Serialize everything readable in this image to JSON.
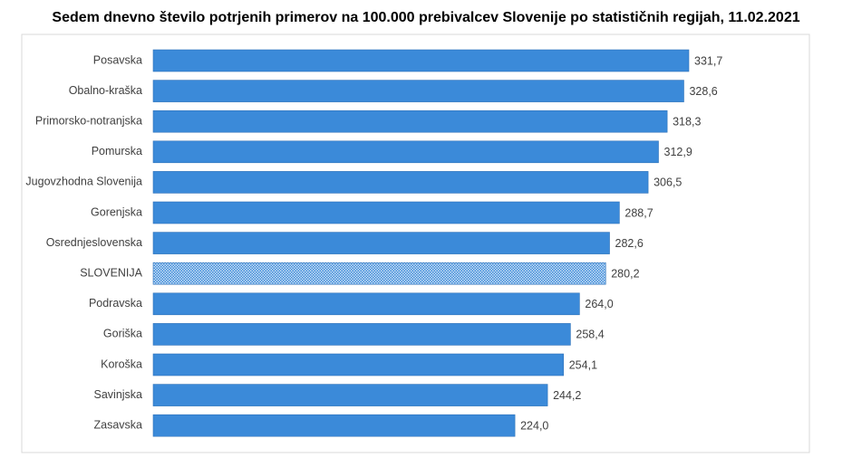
{
  "chart_data": {
    "type": "bar",
    "orientation": "horizontal",
    "title": "Sedem dnevno število potrjenih primerov na 100.000 prebivalcev Slovenije po statističnih regijah, 11.02.2021",
    "categories": [
      "Posavska",
      "Obalno-kraška",
      "Primorsko-notranjska",
      "Pomurska",
      "Jugovzhodna Slovenija",
      "Gorenjska",
      "Osrednjeslovenska",
      "SLOVENIJA",
      "Podravska",
      "Goriška",
      "Koroška",
      "Savinjska",
      "Zasavska"
    ],
    "values": [
      331.7,
      328.6,
      318.3,
      312.9,
      306.5,
      288.7,
      282.6,
      280.2,
      264.0,
      258.4,
      254.1,
      244.2,
      224.0
    ],
    "value_labels": [
      "331,7",
      "328,6",
      "318,3",
      "312,9",
      "306,5",
      "288,7",
      "282,6",
      "280,2",
      "264,0",
      "258,4",
      "254,1",
      "244,2",
      "224,0"
    ],
    "color": "#3b8ad9",
    "highlight_index": 7
  }
}
